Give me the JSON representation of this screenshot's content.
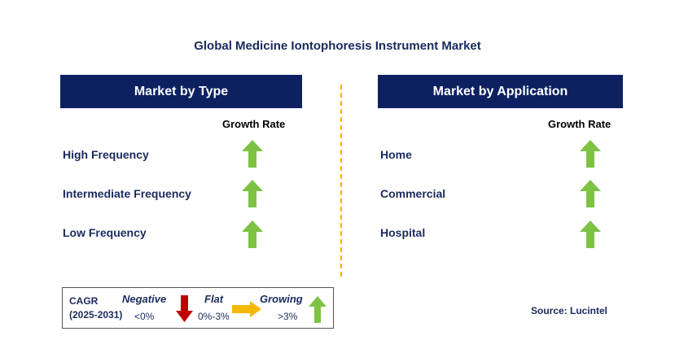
{
  "title": "Global Medicine Iontophoresis Instrument Market",
  "left_panel": {
    "header": "Market by Type",
    "growth_label": "Growth Rate",
    "items": [
      {
        "label": "High Frequency",
        "trend": "growing"
      },
      {
        "label": "Intermediate Frequency",
        "trend": "growing"
      },
      {
        "label": "Low Frequency",
        "trend": "growing"
      }
    ]
  },
  "right_panel": {
    "header": "Market by Application",
    "growth_label": "Growth Rate",
    "items": [
      {
        "label": "Home",
        "trend": "growing"
      },
      {
        "label": "Commercial",
        "trend": "growing"
      },
      {
        "label": "Hospital",
        "trend": "growing"
      }
    ]
  },
  "legend": {
    "cagr_label": "CAGR",
    "period": "(2025-2031)",
    "negative_label": "Negative",
    "negative_range": "<0%",
    "flat_label": "Flat",
    "flat_range": "0%-3%",
    "growing_label": "Growing",
    "growing_range": ">3%"
  },
  "source": "Source: Lucintel",
  "colors": {
    "header_bg": "#0d2161",
    "growing": "#7dc242",
    "negative": "#c00000",
    "flat": "#f5b800",
    "divider": "#f0b400"
  }
}
